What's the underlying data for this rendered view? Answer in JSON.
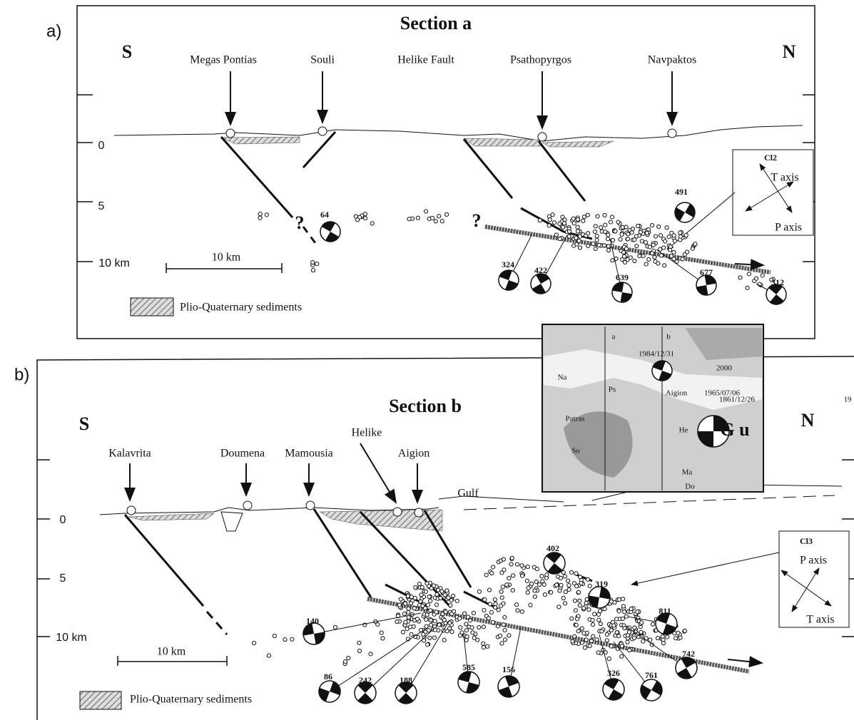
{
  "panel_a": {
    "label": "a)",
    "title": "Section a",
    "south": "S",
    "north": "N",
    "places": [
      "Megas Pontias",
      "Souli",
      "Helike Fault",
      "Psathopyrgos",
      "Navpaktos"
    ],
    "depths": [
      "0",
      "5",
      "10 km"
    ],
    "scale": "10 km",
    "legend": "Plio-Quaternary sediments",
    "uncertain": [
      "?",
      "?"
    ],
    "events": [
      "64",
      "491",
      "324",
      "422",
      "639",
      "677",
      "312"
    ],
    "stress_box": {
      "name": "Cl2",
      "t_axis": "T axis",
      "p_axis": "P axis"
    }
  },
  "panel_b": {
    "label": "b)",
    "title": "Section b",
    "south": "S",
    "north": "N",
    "places": [
      "Kalavrita",
      "Doumena",
      "Mamousia",
      "Helike",
      "Aigion"
    ],
    "gulf": "Gulf",
    "depths": [
      "0",
      "5",
      "10 km"
    ],
    "scale": "10 km",
    "legend": "Plio-Quaternary sediments",
    "events": [
      "402",
      "319",
      "811",
      "140",
      "742",
      "86",
      "242",
      "188",
      "585",
      "156",
      "326",
      "761"
    ],
    "stress_box": {
      "name": "Cl3",
      "p_axis": "P axis",
      "t_axis": "T axis"
    }
  },
  "inset_map": {
    "sections": [
      "a",
      "b"
    ],
    "labels": [
      "1984/12/31",
      "2000",
      "Na",
      "Ps",
      "1861/12/26",
      "19",
      "Aigion",
      "1965/07/06",
      "Patras",
      "He",
      "G u",
      "So",
      "Ma",
      "Do"
    ]
  }
}
